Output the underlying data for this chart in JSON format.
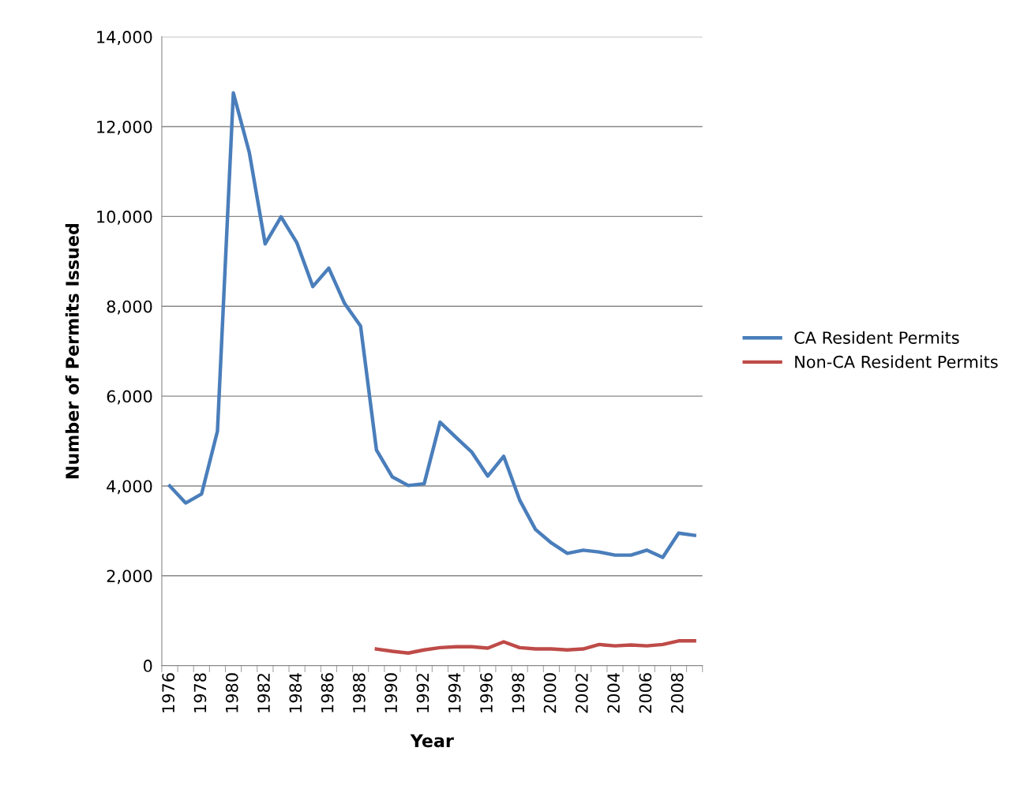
{
  "chart_data": {
    "type": "line",
    "xlabel": "Year",
    "ylabel": "Number of Permits Issued",
    "categories": [
      "1976",
      null,
      "1978",
      null,
      "1980",
      null,
      "1982",
      null,
      "1984",
      null,
      "1986",
      null,
      "1988",
      null,
      "1990",
      null,
      "1992",
      null,
      "1994",
      null,
      "1996",
      null,
      "1998",
      null,
      "2000",
      null,
      "2002",
      null,
      "2004",
      null,
      "2006",
      null,
      "2008",
      null
    ],
    "series": [
      {
        "name": "CA Resident Permits",
        "color": "#4a7ebb",
        "values": [
          4000,
          3620,
          3820,
          5220,
          12750,
          11430,
          9390,
          9990,
          9410,
          8440,
          8850,
          8060,
          7560,
          4800,
          4200,
          4010,
          4050,
          5420,
          5080,
          4750,
          4220,
          4660,
          3690,
          3030,
          2730,
          2500,
          2570,
          2530,
          2460,
          2460,
          2570,
          2410,
          2950,
          2900
        ]
      },
      {
        "name": "Non-CA Resident Permits",
        "color": "#be4b48",
        "values": [
          null,
          null,
          null,
          null,
          null,
          null,
          null,
          null,
          null,
          null,
          null,
          null,
          null,
          370,
          320,
          280,
          350,
          400,
          420,
          420,
          390,
          530,
          400,
          370,
          370,
          350,
          370,
          470,
          440,
          460,
          440,
          470,
          550,
          550
        ]
      }
    ],
    "ylim": [
      0,
      14000
    ],
    "yticks": [
      {
        "value": 0,
        "label": "0"
      },
      {
        "value": 2000,
        "label": "2,000"
      },
      {
        "value": 4000,
        "label": "4,000"
      },
      {
        "value": 6000,
        "label": "6,000"
      },
      {
        "value": 8000,
        "label": "8,000"
      },
      {
        "value": 10000,
        "label": "10,000"
      },
      {
        "value": 12000,
        "label": "12,000"
      },
      {
        "value": 14000,
        "label": "14,000"
      }
    ],
    "grid": "y",
    "legend": "right",
    "marker": "none",
    "line_style": "solid"
  }
}
